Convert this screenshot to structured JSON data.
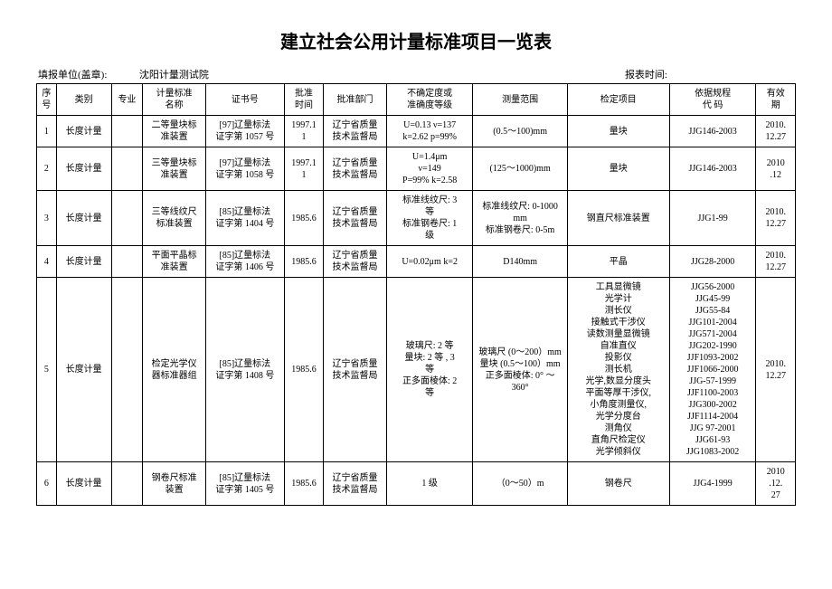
{
  "title": "建立社会公用计量标准项目一览表",
  "header_left_label": "填报单位(盖章):",
  "header_left_value": "沈阳计量测试院",
  "header_right_label": "报表时间:",
  "columns": [
    "序\n号",
    "类别",
    "专业",
    "计量标准\n名称",
    "证书号",
    "批准\n时间",
    "批准部门",
    "不确定度或\n准确度等级",
    "测量范围",
    "检定项目",
    "依据规程\n代  码",
    "有效\n期"
  ],
  "rows": [
    {
      "seq": "1",
      "cat": "长度计量",
      "prof": "",
      "std": "二等量块标\n准装置",
      "cert": "[97]辽量标法\n证字第 1057 号",
      "apdt": "1997.1\n1",
      "apdp": "辽宁省质量\n技术监督局",
      "uncert": "U=0.13  ν=137\nk=2.62  p=99%",
      "range": "(0.5～100)mm",
      "item": "量块",
      "code": "JJG146-2003",
      "valid": "2010.\n12.27"
    },
    {
      "seq": "2",
      "cat": "长度计量",
      "prof": "",
      "std": "三等量块标\n准装置",
      "cert": "[97]辽量标法\n证字第 1058 号",
      "apdt": "1997.1\n1",
      "apdp": "辽宁省质量\n技术监督局",
      "uncert": "U=1.4μm\nν=149\nP=99% k=2.58",
      "range": "(125～1000)mm",
      "item": "量块",
      "code": "JJG146-2003",
      "valid": "2010\n.12"
    },
    {
      "seq": "3",
      "cat": "长度计量",
      "prof": "",
      "std": "三等线纹尺\n标准装置",
      "cert": "[85]辽量标法\n证字第 1404 号",
      "apdt": "1985.6",
      "apdp": "辽宁省质量\n技术监督局",
      "uncert": "标准线纹尺: 3\n等\n标准钢卷尺: 1\n级",
      "range": "标准线纹尺: 0-1000\nmm\n标准钢卷尺: 0-5m",
      "item": "钢直尺标准装置",
      "code": "JJG1-99",
      "valid": "2010.\n12.27"
    },
    {
      "seq": "4",
      "cat": "长度计量",
      "prof": "",
      "std": "平面平晶标\n准装置",
      "cert": "[85]辽量标法\n证字第 1406 号",
      "apdt": "1985.6",
      "apdp": "辽宁省质量\n技术监督局",
      "uncert": "U=0.02μm k=2",
      "range": "D140mm",
      "item": "平晶",
      "code": "JJG28-2000",
      "valid": "2010.\n12.27"
    },
    {
      "seq": "5",
      "cat": "长度计量",
      "prof": "",
      "std": "检定光学仪\n器标准器组",
      "cert": "[85]辽量标法\n证字第 1408 号",
      "apdt": "1985.6",
      "apdp": "辽宁省质量\n技术监督局",
      "uncert": "玻璃尺: 2 等\n量块: 2 等 , 3\n等\n正多面棱体: 2\n等",
      "range": "玻璃尺 (0～200）mm\n量块 (0.5～100）mm\n正多面棱体: 0° ～\n360°",
      "item": "工具显微镜\n光学计\n测长仪\n接触式干涉仪\n读数测量显微镜\n自准直仪\n投影仪\n测长机\n光学,数显分度头\n平面等厚干涉仪,\n小角度测量仪,\n光学分度台\n测角仪\n直角尺检定仪\n光学倾斜仪",
      "code": "JJG56-2000\nJJG45-99\nJJG55-84\nJJG101-2004\nJJG571-2004\nJJG202-1990\nJJF1093-2002\nJJF1066-2000\nJJG-57-1999\nJJF1100-2003\nJJG300-2002\nJJF1114-2004\nJJG 97-2001\nJJG61-93\nJJG1083-2002",
      "valid": "2010.\n12.27"
    },
    {
      "seq": "6",
      "cat": "长度计量",
      "prof": "",
      "std": "钢卷尺标准\n装置",
      "cert": "[85]辽量标法\n证字第 1405 号",
      "apdt": "1985.6",
      "apdp": "辽宁省质量\n技术监督局",
      "uncert": "1 级",
      "range": "（0～50）m",
      "item": "钢卷尺",
      "code": "JJG4-1999",
      "valid": "2010\n.12.\n27"
    }
  ]
}
